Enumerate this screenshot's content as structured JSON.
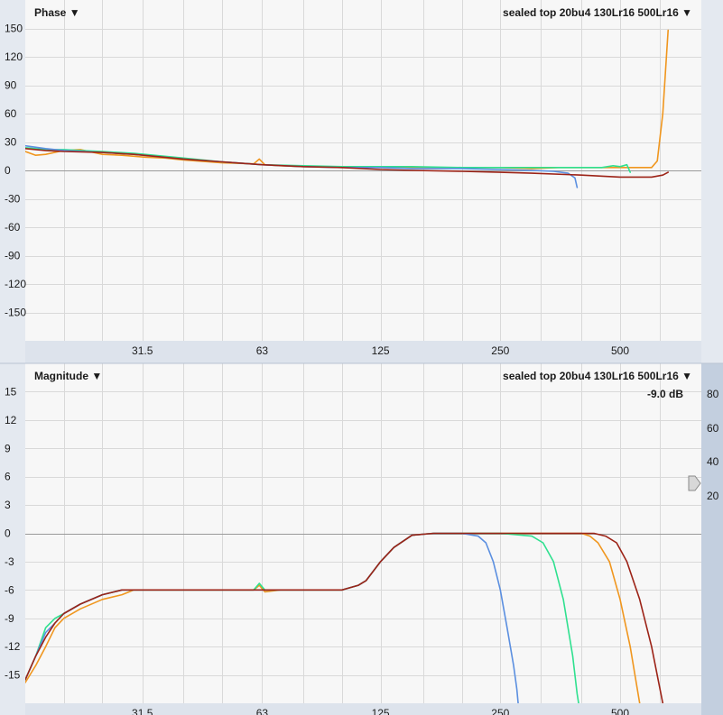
{
  "chart_data": [
    {
      "type": "line",
      "title": "Phase",
      "title_arrow": "▼",
      "legend_title": "sealed top 20bu4 130Lr16 500Lr16",
      "legend_arrow": "▼",
      "xscale": "log",
      "xlim": [
        16,
        800
      ],
      "ylim": [
        -180,
        180
      ],
      "x_ticks": [
        31.5,
        63,
        125,
        250,
        500
      ],
      "x_tick_labels": [
        "31.5",
        "63",
        "125",
        "250",
        "500"
      ],
      "y_ticks": [
        150,
        120,
        90,
        60,
        30,
        0,
        -30,
        -60,
        -90,
        -120,
        -150
      ],
      "y_tick_labels": [
        "150",
        "120",
        "90",
        "60",
        "30",
        "0",
        "-30",
        "-60",
        "-90",
        "-120",
        "-150"
      ],
      "grid": true,
      "series": [
        {
          "color": "#f0961e",
          "x": [
            16,
            17,
            18,
            20,
            22,
            25,
            28,
            32,
            36,
            40,
            50,
            60,
            62,
            64,
            70,
            80,
            90,
            100,
            125,
            150,
            200,
            250,
            300,
            350,
            400,
            450,
            500,
            550,
            600,
            620,
            640,
            660
          ],
          "y": [
            20,
            16,
            17,
            21,
            22,
            17,
            16,
            14,
            13,
            11,
            8,
            7,
            12,
            6,
            5,
            4,
            4,
            3,
            3,
            3,
            3,
            3,
            2,
            3,
            3,
            3,
            3,
            3,
            3,
            10,
            60,
            148
          ]
        },
        {
          "color": "#2fe08f",
          "x": [
            16,
            18,
            20,
            22,
            25,
            30,
            40,
            50,
            63,
            80,
            100,
            125,
            150,
            200,
            250,
            300,
            350,
            400,
            450,
            480,
            500,
            520,
            530
          ],
          "y": [
            24,
            22,
            22,
            21,
            20,
            18,
            13,
            9,
            6,
            5,
            4,
            4,
            4,
            3,
            3,
            3,
            3,
            3,
            3,
            5,
            4,
            6,
            -2
          ]
        },
        {
          "color": "#5b8fe0",
          "x": [
            16,
            18,
            20,
            25,
            30,
            40,
            50,
            63,
            80,
            100,
            125,
            150,
            200,
            250,
            300,
            340,
            370,
            385,
            390
          ],
          "y": [
            26,
            23,
            21,
            19,
            17,
            12,
            9,
            6,
            4,
            3,
            3,
            2,
            2,
            1,
            0,
            -1,
            -3,
            -8,
            -18
          ]
        },
        {
          "color": "#9c2317",
          "x": [
            16,
            18,
            20,
            25,
            30,
            40,
            50,
            63,
            80,
            100,
            125,
            150,
            200,
            250,
            300,
            400,
            500,
            600,
            640,
            660
          ],
          "y": [
            23,
            21,
            20,
            19,
            17,
            12,
            9,
            6,
            4,
            3,
            1,
            0,
            -1,
            -2,
            -3,
            -5,
            -7,
            -7,
            -5,
            -2
          ]
        }
      ]
    },
    {
      "type": "line",
      "title": "Magnitude",
      "title_arrow": "▼",
      "legend_title": "sealed top 20bu4 130Lr16 500Lr16",
      "legend_arrow": "▼",
      "offset_label": "-9.0 dB",
      "xscale": "log",
      "xlim": [
        16,
        800
      ],
      "ylim": [
        -18,
        18
      ],
      "x_ticks": [
        31.5,
        63,
        125,
        250,
        500
      ],
      "x_tick_labels": [
        "31.5",
        "63",
        "125",
        "250",
        "500"
      ],
      "y_ticks": [
        15,
        12,
        9,
        6,
        3,
        0,
        -3,
        -6,
        -9,
        -12,
        -15
      ],
      "y_tick_labels": [
        "15",
        "12",
        "9",
        "6",
        "3",
        "0",
        "-3",
        "-6",
        "-9",
        "-12",
        "-15"
      ],
      "right_axis_ticks": [
        80,
        60,
        40,
        20
      ],
      "right_axis_labels": [
        "80",
        "60",
        "40",
        "20"
      ],
      "grid": true,
      "series": [
        {
          "color": "#f0961e",
          "x": [
            16,
            17,
            18,
            19,
            20,
            22,
            25,
            28,
            30,
            35,
            40,
            50,
            60,
            62,
            64,
            70,
            80,
            90,
            100,
            110,
            115,
            125,
            135,
            150,
            170,
            200,
            250,
            300,
            350,
            400,
            420,
            440,
            470,
            500,
            530,
            560,
            580
          ],
          "y": [
            -15.8,
            -14,
            -12,
            -10,
            -9,
            -8,
            -7,
            -6.5,
            -6,
            -6,
            -6,
            -6,
            -6,
            -5.5,
            -6.2,
            -6,
            -6,
            -6,
            -6,
            -5.5,
            -5,
            -3,
            -1.5,
            -0.2,
            0,
            0,
            0,
            0,
            0,
            0,
            -0.3,
            -1,
            -3,
            -7,
            -12,
            -18,
            -20
          ]
        },
        {
          "color": "#2fe08f",
          "x": [
            16,
            17,
            18,
            19,
            20,
            22,
            25,
            28,
            30,
            35,
            40,
            50,
            60,
            62,
            64,
            70,
            80,
            90,
            100,
            110,
            115,
            125,
            135,
            150,
            170,
            200,
            250,
            300,
            320,
            340,
            360,
            380,
            390,
            400
          ],
          "y": [
            -15.5,
            -13,
            -10,
            -9,
            -8.5,
            -7.5,
            -6.5,
            -6,
            -6,
            -6,
            -6,
            -6,
            -6,
            -5.3,
            -6,
            -6,
            -6,
            -6,
            -6,
            -5.5,
            -5,
            -3,
            -1.5,
            -0.2,
            0,
            0,
            0,
            -0.3,
            -1,
            -3,
            -7,
            -13,
            -17,
            -20
          ]
        },
        {
          "color": "#5b8fe0",
          "x": [
            16,
            17,
            18,
            19,
            20,
            22,
            25,
            28,
            30,
            35,
            40,
            50,
            60,
            63,
            70,
            80,
            90,
            100,
            110,
            115,
            125,
            135,
            150,
            170,
            200,
            220,
            230,
            240,
            250,
            260,
            270,
            275,
            280
          ],
          "y": [
            -15.5,
            -13,
            -10.5,
            -9.5,
            -8.5,
            -7.5,
            -6.5,
            -6,
            -6,
            -6,
            -6,
            -6,
            -6,
            -6,
            -6,
            -6,
            -6,
            -6,
            -5.5,
            -5,
            -3,
            -1.5,
            -0.2,
            0,
            0,
            -0.3,
            -1,
            -3,
            -6,
            -10,
            -14,
            -16.5,
            -20
          ]
        },
        {
          "color": "#9c2317",
          "x": [
            16,
            17,
            18,
            19,
            20,
            22,
            25,
            28,
            30,
            35,
            40,
            50,
            60,
            63,
            70,
            80,
            90,
            100,
            110,
            115,
            125,
            135,
            150,
            170,
            200,
            250,
            300,
            350,
            400,
            430,
            460,
            490,
            520,
            560,
            600,
            640
          ],
          "y": [
            -15.5,
            -13,
            -11,
            -9.5,
            -8.5,
            -7.5,
            -6.5,
            -6,
            -6,
            -6,
            -6,
            -6,
            -6,
            -6,
            -6,
            -6,
            -6,
            -6,
            -5.5,
            -5,
            -3,
            -1.5,
            -0.2,
            0,
            0,
            0,
            0,
            0,
            0,
            0,
            -0.3,
            -1,
            -3,
            -7,
            -12,
            -18
          ]
        }
      ]
    }
  ]
}
